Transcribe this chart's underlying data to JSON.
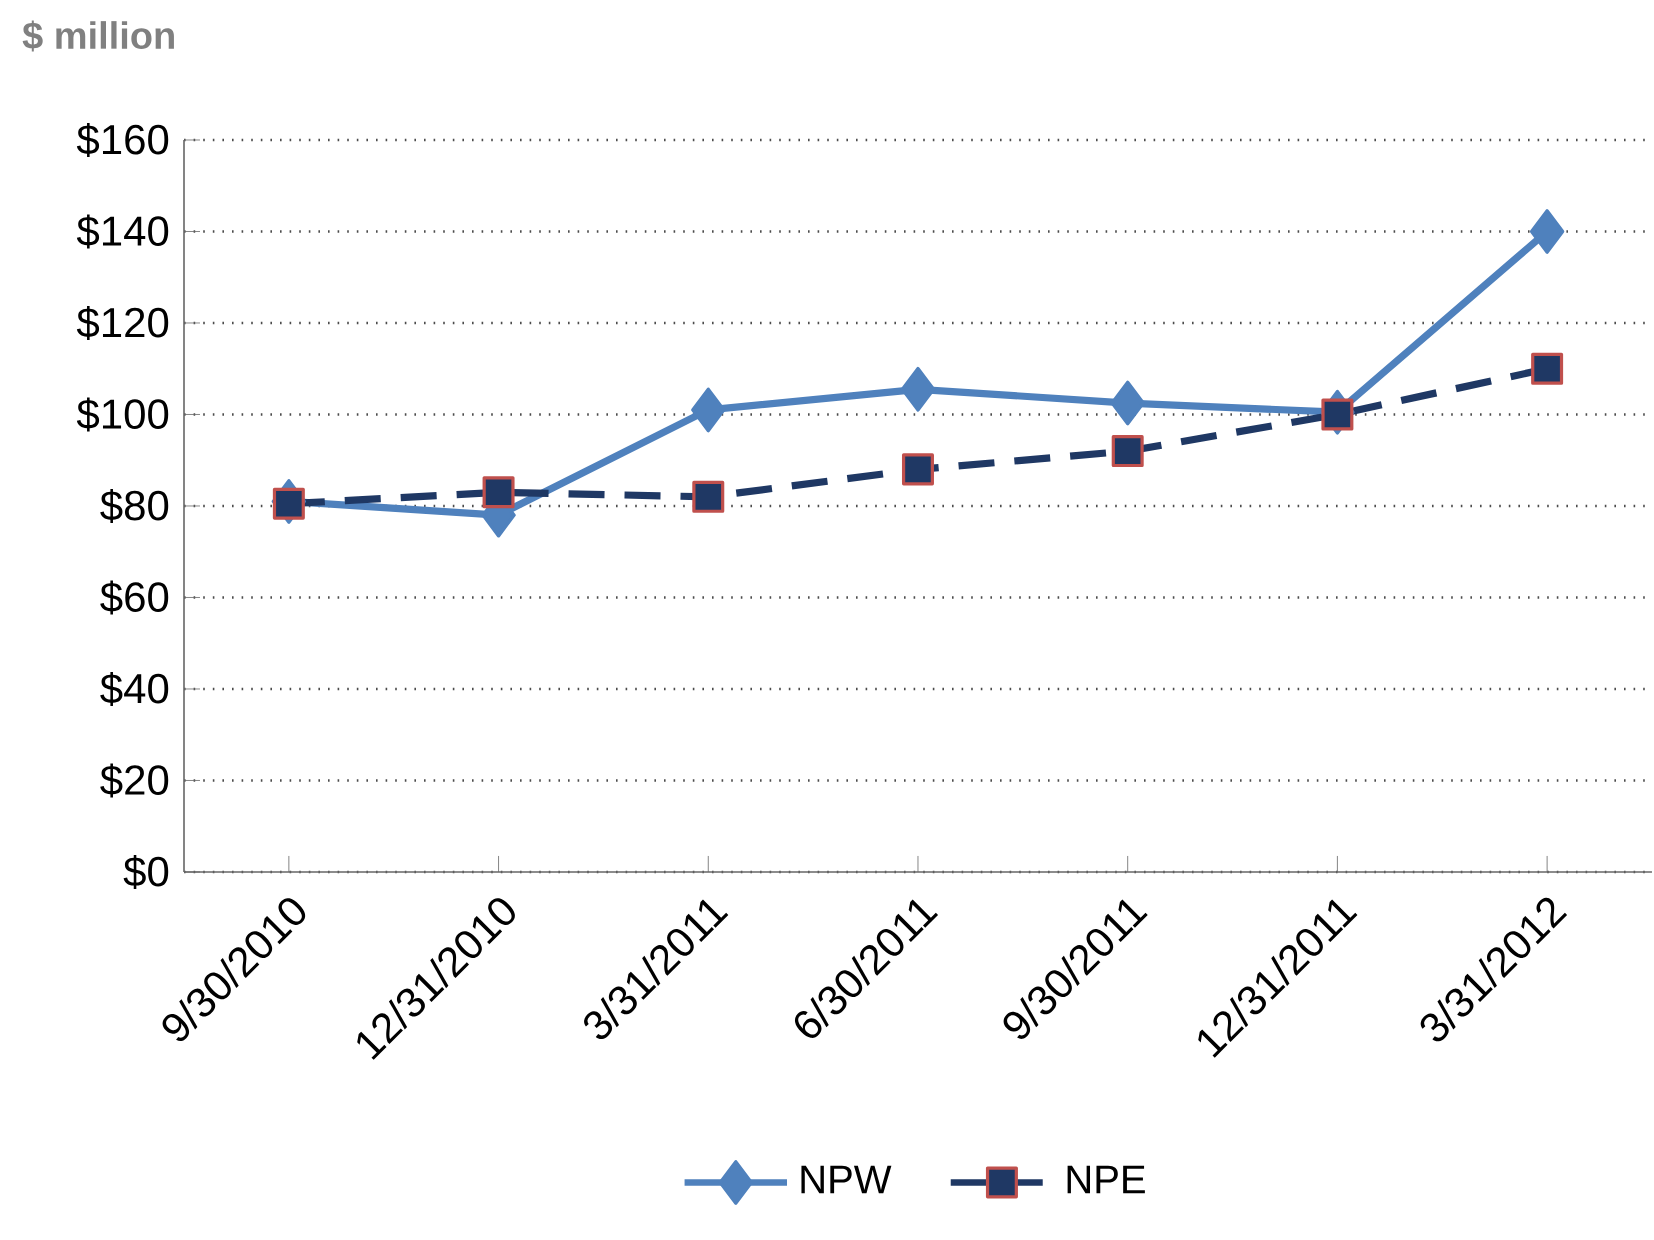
{
  "chart_data": {
    "type": "line",
    "ylabel": "$ million",
    "categories": [
      "9/30/2010",
      "12/31/2010",
      "3/31/2011",
      "6/30/2011",
      "9/30/2011",
      "12/31/2011",
      "3/31/2012"
    ],
    "series": [
      {
        "name": "NPW",
        "color": "#4f81bd",
        "marker": "diamond",
        "line_style": "solid",
        "values": [
          81,
          78,
          101,
          105.5,
          102.5,
          100.5,
          140
        ]
      },
      {
        "name": "NPE",
        "color": "#1f3864",
        "marker": "square",
        "line_style": "dashed",
        "values": [
          80.5,
          83,
          82,
          88,
          92,
          100,
          110
        ]
      }
    ],
    "ylim": [
      0,
      160
    ],
    "yticks": [
      {
        "value": 0,
        "label": "$0"
      },
      {
        "value": 20,
        "label": "$20"
      },
      {
        "value": 40,
        "label": "$40"
      },
      {
        "value": 60,
        "label": "$60"
      },
      {
        "value": 80,
        "label": "$80"
      },
      {
        "value": 100,
        "label": "$100"
      },
      {
        "value": 120,
        "label": "$120"
      },
      {
        "value": 140,
        "label": "$140"
      },
      {
        "value": 160,
        "label": "$160"
      }
    ],
    "grid": "y",
    "legend": "bottom"
  }
}
